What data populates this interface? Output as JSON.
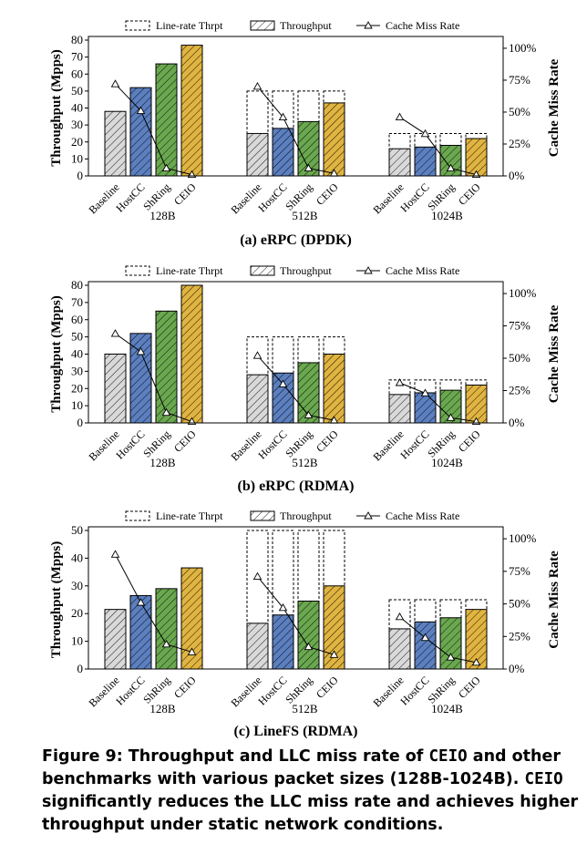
{
  "legend": {
    "line_rate": "Line-rate Thrpt",
    "throughput": "Throughput",
    "miss": "Cache Miss Rate"
  },
  "colors": {
    "Baseline": "#d9d9d9",
    "HostCC": "#5b7fbf",
    "ShRing": "#6aa84f",
    "CEIO": "#e0b440"
  },
  "chart_data": [
    {
      "type": "bar",
      "title": "(a) eRPC (DPDK)",
      "ylabel": "Throughput (Mpps)",
      "y2label": "Cache Miss Rate",
      "ylim": [
        0,
        80
      ],
      "yticks": [
        "0",
        "10",
        "20",
        "30",
        "40",
        "50",
        "60",
        "70",
        "80"
      ],
      "y2ticks": [
        "0%",
        "25%",
        "50%",
        "75%",
        "100%"
      ],
      "groups": [
        "128B",
        "512B",
        "1024B"
      ],
      "categories": [
        "Baseline",
        "HostCC",
        "ShRing",
        "CEIO"
      ],
      "throughput": [
        [
          38,
          52,
          66,
          77
        ],
        [
          25,
          28,
          32,
          43
        ],
        [
          16,
          17,
          18,
          22
        ]
      ],
      "line_rate": [
        null,
        [
          50,
          50,
          50,
          50
        ],
        [
          25,
          25,
          25,
          25
        ]
      ],
      "miss_rate": [
        [
          72,
          51,
          6,
          1
        ],
        [
          70,
          46,
          6,
          2
        ],
        [
          46,
          33,
          6,
          1
        ]
      ]
    },
    {
      "type": "bar",
      "title": "(b) eRPC (RDMA)",
      "ylabel": "Throughput (Mpps)",
      "y2label": "Cache Miss Rate",
      "ylim": [
        0,
        80
      ],
      "yticks": [
        "0",
        "10",
        "20",
        "30",
        "40",
        "50",
        "60",
        "70",
        "80"
      ],
      "y2ticks": [
        "0%",
        "25%",
        "50%",
        "75%",
        "100%"
      ],
      "groups": [
        "128B",
        "512B",
        "1024B"
      ],
      "categories": [
        "Baseline",
        "HostCC",
        "ShRing",
        "CEIO"
      ],
      "throughput": [
        [
          40,
          52,
          65,
          80
        ],
        [
          28,
          29,
          35,
          40
        ],
        [
          16.5,
          17.5,
          19,
          22
        ]
      ],
      "line_rate": [
        null,
        [
          50,
          50,
          50,
          50
        ],
        [
          25,
          25,
          25,
          25
        ]
      ],
      "miss_rate": [
        [
          69,
          55,
          8,
          1
        ],
        [
          52,
          30,
          6,
          2
        ],
        [
          31,
          23,
          4,
          1
        ]
      ]
    },
    {
      "type": "bar",
      "title": "(c) LineFS (RDMA)",
      "ylabel": "Throughput (Mpps)",
      "y2label": "Cache Miss Rate",
      "ylim": [
        0,
        50
      ],
      "yticks": [
        "0",
        "10",
        "20",
        "30",
        "40",
        "50"
      ],
      "y2ticks": [
        "0%",
        "25%",
        "50%",
        "75%",
        "100%"
      ],
      "groups": [
        "128B",
        "512B",
        "1024B"
      ],
      "categories": [
        "Baseline",
        "HostCC",
        "ShRing",
        "CEIO"
      ],
      "throughput": [
        [
          21.5,
          26.5,
          29,
          36.5
        ],
        [
          16.5,
          19.5,
          24.5,
          30
        ],
        [
          14.5,
          17,
          18.5,
          21.5
        ]
      ],
      "line_rate": [
        null,
        [
          50,
          50,
          50,
          50
        ],
        [
          25,
          25,
          25,
          25
        ]
      ],
      "miss_rate": [
        [
          88,
          51,
          19,
          13
        ],
        [
          71,
          47,
          17,
          11
        ],
        [
          40,
          24,
          9,
          5
        ]
      ]
    }
  ],
  "caption": {
    "p1": "Figure 9: Throughput and LLC miss rate of ",
    "c1": "CEIO",
    "p2": " and other benchmarks with various packet sizes (128B-1024B). ",
    "c2": "CEIO",
    "p3": " significantly reduces the LLC miss rate and achieves higher throughput under static network conditions."
  }
}
